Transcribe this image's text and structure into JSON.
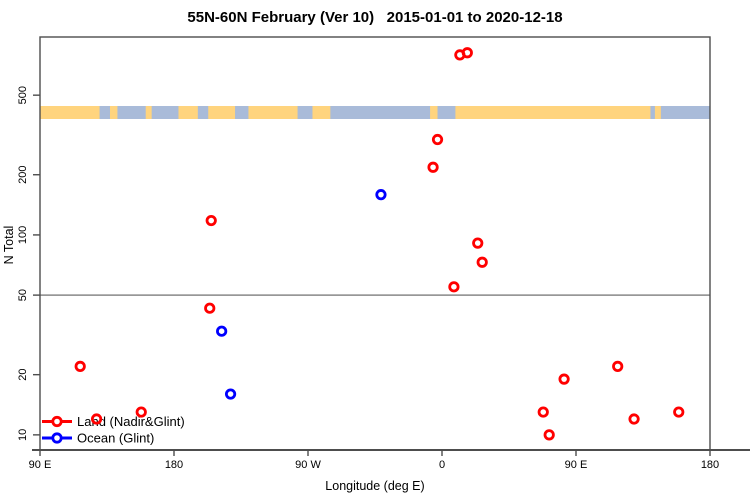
{
  "title": "55N-60N February (Ver 10)   2015-01-01 to 2020-12-18",
  "colors": {
    "land_marker": "#ff0000",
    "ocean_marker": "#0000ff",
    "map_land": "#ffd47e",
    "map_ocean": "#a9bbd9",
    "frame": "#4d4d4d",
    "reference_line": "#888888",
    "text": "#000000"
  },
  "legend": {
    "items": [
      {
        "label": "Land (Nadir&Glint)",
        "color": "#ff0000"
      },
      {
        "label": "Ocean (Glint)",
        "color": "#0000ff"
      }
    ]
  },
  "x_axis": {
    "label": "Longitude (deg E)",
    "range": [
      90,
      540
    ],
    "ticks": [
      {
        "value": 90,
        "label": "90 E"
      },
      {
        "value": 180,
        "label": "180"
      },
      {
        "value": 270,
        "label": "90 W"
      },
      {
        "value": 360,
        "label": "0"
      },
      {
        "value": 450,
        "label": "90 E"
      },
      {
        "value": 540,
        "label": "180"
      }
    ]
  },
  "y_axis": {
    "label": "N Total",
    "scale": "log",
    "range": [
      8.4,
      977
    ],
    "ticks": [
      {
        "value": 10,
        "label": "10"
      },
      {
        "value": 20,
        "label": "20"
      },
      {
        "value": 50,
        "label": "50"
      },
      {
        "value": 100,
        "label": "100"
      },
      {
        "value": 200,
        "label": "200"
      },
      {
        "value": 500,
        "label": "500"
      }
    ]
  },
  "chart_data": {
    "type": "scatter",
    "x_is": "longitude_deg_e_unwrapped_90_to_540",
    "series": [
      {
        "name": "Land (Nadir&Glint)",
        "color": "#ff0000",
        "points": [
          [
            117,
            22
          ],
          [
            128,
            12
          ],
          [
            158,
            13
          ],
          [
            204,
            43
          ],
          [
            205,
            118
          ],
          [
            354,
            218
          ],
          [
            357,
            300
          ],
          [
            368,
            55
          ],
          [
            372,
            795
          ],
          [
            377,
            815
          ],
          [
            384,
            91
          ],
          [
            387,
            73
          ],
          [
            428,
            13
          ],
          [
            432,
            10
          ],
          [
            442,
            19
          ],
          [
            478,
            22
          ],
          [
            489,
            12
          ],
          [
            519,
            13
          ]
        ]
      },
      {
        "name": "Ocean (Glint)",
        "color": "#0000ff",
        "points": [
          [
            212,
            33
          ],
          [
            218,
            16
          ],
          [
            319,
            159
          ]
        ]
      }
    ],
    "reference_line_n": 50,
    "map_strip": {
      "land_segments_deg": [
        [
          90,
          130
        ],
        [
          137,
          142
        ],
        [
          161,
          165
        ],
        [
          183,
          196
        ],
        [
          203,
          221
        ],
        [
          230,
          263
        ],
        [
          273,
          285
        ],
        [
          352,
          357
        ],
        [
          369,
          500
        ],
        [
          503,
          507
        ]
      ]
    }
  }
}
